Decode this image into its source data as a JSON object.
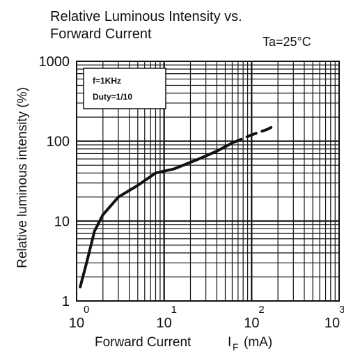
{
  "chart_data": {
    "type": "line",
    "title_lines": [
      "Relative Luminous Intensity vs.",
      "Forward Current"
    ],
    "condition": "Ta=25°C",
    "xlabel": "Forward Current",
    "xlabel_symbol": "I",
    "xlabel_subscript": "F",
    "xlabel_unit": "(mA)",
    "ylabel": "Relative luminous intensity (%)",
    "x_scale": "log",
    "y_scale": "log",
    "xlim": [
      1,
      1000
    ],
    "ylim": [
      1,
      1000
    ],
    "x_ticks": [
      {
        "base": "10",
        "exp": "0"
      },
      {
        "base": "10",
        "exp": "1"
      },
      {
        "base": "10",
        "exp": "2"
      },
      {
        "base": "10",
        "exp": "3"
      }
    ],
    "y_ticks": [
      "1",
      "10",
      "100",
      "1000"
    ],
    "grid": true,
    "note_lines": [
      "f=1KHz",
      "Duty=1/10"
    ],
    "series": [
      {
        "style": "solid",
        "x": [
          1.1,
          1.3,
          1.6,
          2.0,
          3.0,
          5.0,
          8.0,
          13.0,
          25.0,
          40.0,
          60.0
        ],
        "y": [
          1.5,
          3.0,
          7.5,
          12.0,
          20.0,
          28.0,
          40.0,
          45.0,
          60.0,
          75.0,
          95.0
        ]
      },
      {
        "style": "dashed",
        "x": [
          60.0,
          100.0,
          150.0,
          180.0
        ],
        "y": [
          95.0,
          120.0,
          140.0,
          155.0
        ]
      }
    ]
  }
}
